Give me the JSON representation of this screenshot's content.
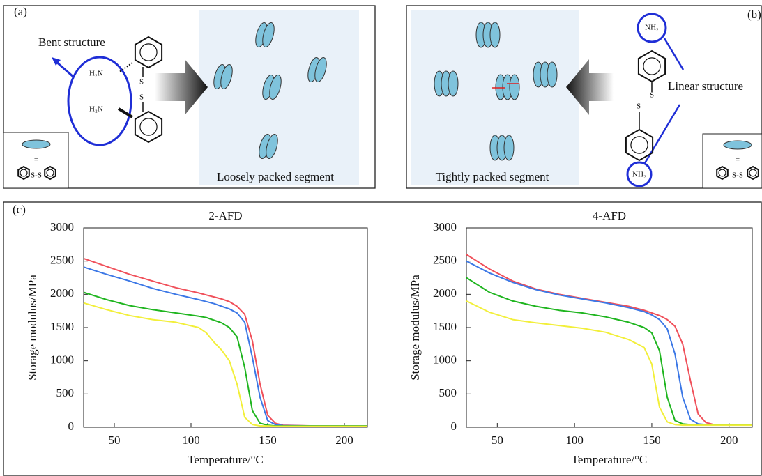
{
  "panels": {
    "a": {
      "label": "(a)",
      "note": "Bent structure",
      "amine_top": "H₂N",
      "amine_bottom": "H₂N",
      "sulfur_top": "S",
      "sulfur_bottom": "S",
      "caption": "Loosely packed segment",
      "legend_eq": "=",
      "legend_ss": "S-S"
    },
    "b": {
      "label": "(b)",
      "note": "Linear structure",
      "amine_top": "NH₂",
      "amine_bottom": "NH₂",
      "sulfur_left": "S",
      "sulfur_right": "S",
      "caption": "Tightly packed segment",
      "legend_eq": "=",
      "legend_ss": "S-S"
    },
    "c": {
      "label": "(c)"
    }
  },
  "chart_data": [
    {
      "type": "line",
      "title": "2-AFD",
      "xlabel": "Temperature/°C",
      "ylabel": "Storage modulus/MPa",
      "x": [
        30,
        45,
        60,
        75,
        90,
        105,
        110,
        115,
        120,
        125,
        130,
        135,
        140,
        145,
        150,
        155,
        160,
        180,
        215
      ],
      "series": [
        {
          "color": "#f0505a",
          "values": [
            2540,
            2420,
            2300,
            2200,
            2100,
            2020,
            1990,
            1960,
            1930,
            1890,
            1820,
            1700,
            1300,
            650,
            180,
            60,
            30,
            20,
            20
          ]
        },
        {
          "color": "#3c78e6",
          "values": [
            2410,
            2300,
            2200,
            2090,
            2000,
            1920,
            1890,
            1860,
            1820,
            1780,
            1720,
            1580,
            1050,
            450,
            100,
            40,
            25,
            20,
            20
          ]
        },
        {
          "color": "#1fb51f",
          "values": [
            2030,
            1920,
            1830,
            1770,
            1720,
            1670,
            1650,
            1610,
            1570,
            1500,
            1360,
            900,
            250,
            60,
            30,
            20,
            20,
            20,
            20
          ]
        },
        {
          "color": "#f2ef3a",
          "values": [
            1870,
            1770,
            1680,
            1620,
            1580,
            1500,
            1420,
            1280,
            1160,
            1000,
            650,
            150,
            40,
            20,
            20,
            15,
            15,
            15,
            15
          ]
        }
      ],
      "xlim": [
        30,
        215
      ],
      "xticks": [
        50,
        100,
        150,
        200
      ],
      "ylim": [
        0,
        3000
      ],
      "yticks": [
        0,
        500,
        1000,
        1500,
        2000,
        2500,
        3000
      ]
    },
    {
      "type": "line",
      "title": "4-AFD",
      "xlabel": "Temperature/°C",
      "ylabel": "Storage modulus/MPa",
      "x": [
        30,
        45,
        60,
        75,
        90,
        105,
        120,
        135,
        145,
        150,
        155,
        160,
        165,
        170,
        175,
        180,
        185,
        190,
        215
      ],
      "series": [
        {
          "color": "#f0505a",
          "values": [
            2600,
            2380,
            2200,
            2080,
            2000,
            1940,
            1880,
            1820,
            1760,
            1720,
            1680,
            1620,
            1520,
            1250,
            700,
            200,
            70,
            40,
            40
          ]
        },
        {
          "color": "#3c78e6",
          "values": [
            2500,
            2320,
            2180,
            2070,
            1990,
            1930,
            1870,
            1800,
            1740,
            1690,
            1620,
            1480,
            1100,
            450,
            120,
            50,
            40,
            40,
            40
          ]
        },
        {
          "color": "#1fb51f",
          "values": [
            2250,
            2030,
            1900,
            1820,
            1760,
            1720,
            1660,
            1580,
            1500,
            1420,
            1150,
            450,
            100,
            50,
            40,
            40,
            40,
            40,
            40
          ]
        },
        {
          "color": "#f2ef3a",
          "values": [
            1900,
            1730,
            1620,
            1570,
            1530,
            1490,
            1430,
            1320,
            1200,
            950,
            300,
            80,
            40,
            30,
            30,
            30,
            30,
            30,
            30
          ]
        }
      ],
      "xlim": [
        30,
        215
      ],
      "xticks": [
        50,
        100,
        150,
        200
      ],
      "ylim": [
        0,
        3000
      ],
      "yticks": [
        0,
        500,
        1000,
        1500,
        2000,
        2500,
        3000
      ]
    }
  ]
}
